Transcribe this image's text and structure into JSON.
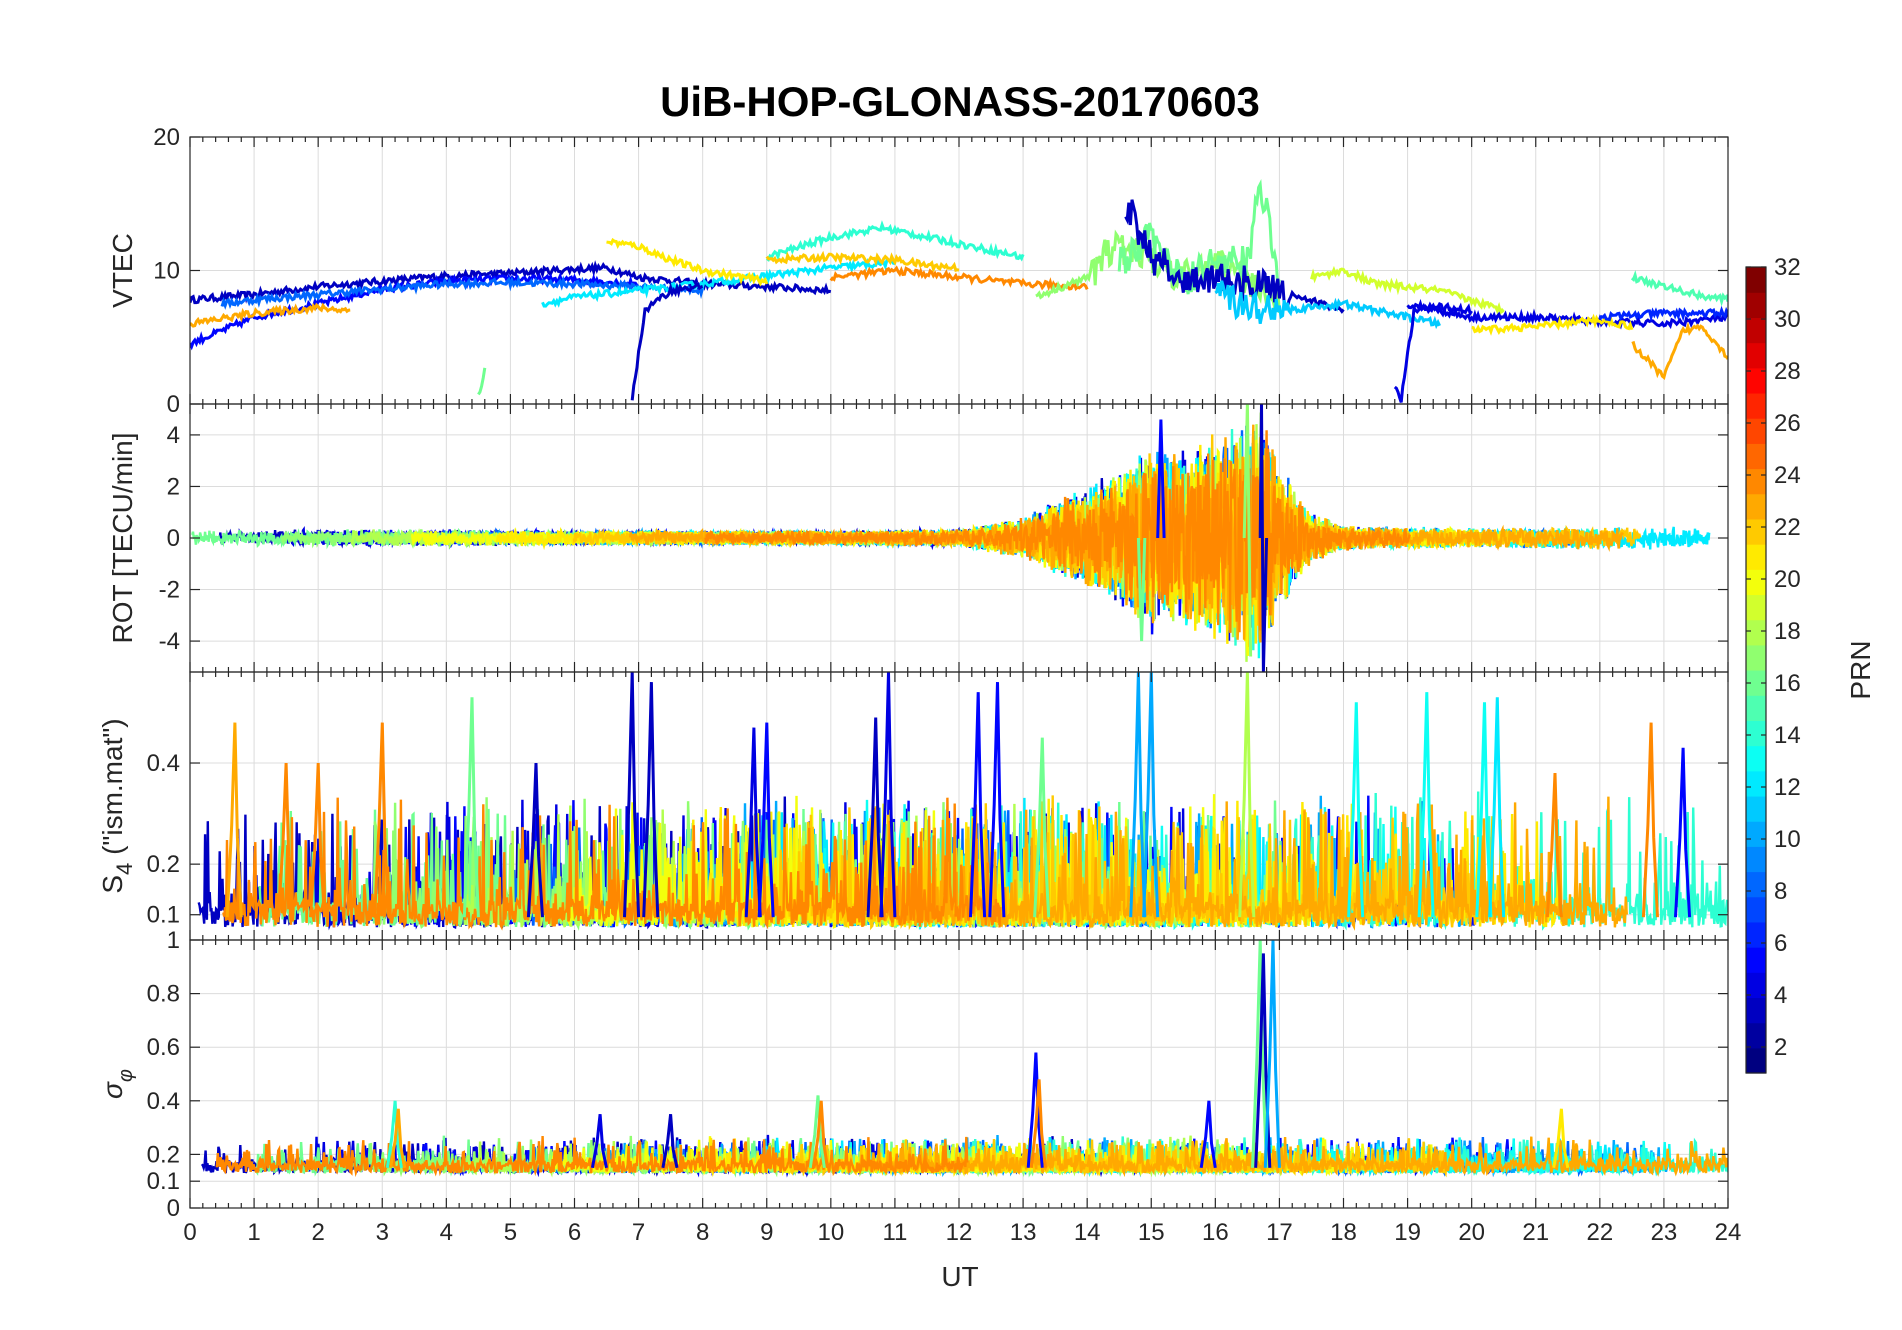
{
  "chart_data": {
    "type": "line",
    "title": "UiB-HOP-GLONASS-20170603",
    "xlabel": "UT",
    "xlim": [
      0,
      24
    ],
    "xticks": [
      "0",
      "1",
      "2",
      "3",
      "4",
      "5",
      "6",
      "7",
      "8",
      "9",
      "10",
      "11",
      "12",
      "13",
      "14",
      "15",
      "16",
      "17",
      "18",
      "19",
      "20",
      "21",
      "22",
      "23",
      "24"
    ],
    "panels": [
      {
        "id": "vtec",
        "ylabel": "VTEC",
        "ylim": [
          0,
          20
        ],
        "yticks": [
          {
            "v": 0,
            "label": "0"
          },
          {
            "v": 10,
            "label": "10"
          },
          {
            "v": 20,
            "label": "20"
          }
        ],
        "series": [
          {
            "prn": 3,
            "x": [
              0,
              1,
              2,
              3,
              4,
              5,
              6,
              6.5,
              7,
              8,
              9,
              10
            ],
            "y": [
              7.8,
              8.2,
              8.8,
              9.2,
              9.6,
              9.8,
              10.1,
              10.2,
              9.5,
              9.0,
              8.8,
              8.5
            ]
          },
          {
            "prn": 5,
            "x": [
              0,
              0.5,
              1,
              2,
              3,
              4,
              5,
              6,
              7
            ],
            "y": [
              4.5,
              5.5,
              6.5,
              7.5,
              8.6,
              9.2,
              9.4,
              9.3,
              9.0
            ]
          },
          {
            "prn": 8,
            "x": [
              0.5,
              1,
              2,
              3,
              4,
              5,
              6,
              7,
              8
            ],
            "y": [
              7.5,
              7.8,
              8.2,
              8.6,
              9.0,
              9.1,
              9.0,
              8.8,
              8.5
            ]
          },
          {
            "prn": 12,
            "x": [
              5.5,
              6,
              7,
              8,
              9,
              10,
              11
            ],
            "y": [
              7.5,
              8.0,
              8.5,
              9.0,
              9.6,
              10.2,
              10.6
            ]
          },
          {
            "prn": 14,
            "x": [
              9,
              10,
              10.8,
              11.5,
              12.5,
              13
            ],
            "y": [
              11.0,
              12.5,
              13.2,
              12.5,
              11.5,
              11.0
            ]
          },
          {
            "prn": 21,
            "x": [
              6.5,
              7,
              7.5,
              8,
              9
            ],
            "y": [
              12.2,
              11.8,
              10.8,
              10.0,
              9.2
            ]
          },
          {
            "prn": 22,
            "x": [
              9,
              10,
              11,
              11.5,
              12
            ],
            "y": [
              10.8,
              11.0,
              10.8,
              10.4,
              10.2
            ]
          },
          {
            "prn": 23,
            "x": [
              0,
              1,
              2,
              2.5
            ],
            "y": [
              6.0,
              6.8,
              7.2,
              7.0
            ]
          },
          {
            "prn": 24,
            "x": [
              10,
              11,
              12,
              13,
              14
            ],
            "y": [
              9.5,
              10.0,
              9.5,
              9.0,
              8.8
            ]
          },
          {
            "prn": 17,
            "x": [
              13.2,
              14,
              14.5,
              15,
              15.5,
              16,
              16.5,
              17
            ],
            "y": [
              8.0,
              9.5,
              12.0,
              11.0,
              9.5,
              10.5,
              9.0,
              8.0
            ]
          },
          {
            "prn": 16,
            "x": [
              14.5,
              15,
              15.5,
              16,
              16.5,
              16.7,
              17
            ],
            "y": [
              10.5,
              12.5,
              9.0,
              11.0,
              10.5,
              17.0,
              8.5
            ]
          },
          {
            "prn": 3,
            "x": [
              14.6,
              14.7,
              15,
              15.5,
              16,
              17,
              18
            ],
            "y": [
              14.2,
              14.5,
              11.0,
              9.0,
              9.5,
              8.5,
              7.0
            ]
          },
          {
            "prn": 11,
            "x": [
              16,
              17,
              18,
              19,
              19.5
            ],
            "y": [
              8.0,
              7.0,
              7.5,
              6.5,
              6.0
            ]
          },
          {
            "prn": 19,
            "x": [
              17.5,
              18,
              18.5,
              19.5,
              20.5
            ],
            "y": [
              9.5,
              10.0,
              9.0,
              8.5,
              7.0
            ]
          },
          {
            "prn": 4,
            "x": [
              19,
              20,
              21,
              22,
              23,
              24
            ],
            "y": [
              7.5,
              6.5,
              6.5,
              6.2,
              6.0,
              6.5
            ]
          },
          {
            "prn": 21,
            "x": [
              20,
              21,
              22,
              22.5
            ],
            "y": [
              5.5,
              5.8,
              6.3,
              5.8
            ]
          },
          {
            "prn": 15,
            "x": [
              22.5,
              23,
              23.5,
              24
            ],
            "y": [
              9.5,
              8.8,
              8.2,
              7.8
            ]
          },
          {
            "prn": 23,
            "x": [
              22.5,
              23,
              23.3,
              23.6,
              24
            ],
            "y": [
              4.5,
              2.0,
              5.5,
              5.8,
              3.5
            ]
          },
          {
            "prn": 6,
            "x": [
              22,
              23,
              24
            ],
            "y": [
              6.5,
              6.8,
              6.8
            ]
          },
          {
            "prn": 3,
            "x": [
              6.9,
              7.1,
              7.5,
              8
            ],
            "y": [
              0.5,
              7.0,
              8.5,
              8.8
            ]
          },
          {
            "prn": 4,
            "x": [
              18.8,
              18.9,
              19.1,
              19.5,
              20
            ],
            "y": [
              1.5,
              0.3,
              7.0,
              7.3,
              7.0
            ]
          },
          {
            "prn": 16,
            "x": [
              4.5,
              4.6
            ],
            "y": [
              0.5,
              2.5
            ]
          }
        ]
      },
      {
        "id": "rot",
        "ylabel": "ROT [TECU/min]",
        "ylim": [
          -5.2,
          5.2
        ],
        "yticks": [
          {
            "v": -4,
            "label": "-4"
          },
          {
            "v": -2,
            "label": "-2"
          },
          {
            "v": 0,
            "label": "0"
          },
          {
            "v": 2,
            "label": "2"
          },
          {
            "v": 4,
            "label": "4"
          }
        ],
        "envelope": {
          "x": [
            0,
            2,
            4,
            6,
            8,
            10,
            12,
            13,
            13.5,
            14,
            14.5,
            15,
            15.5,
            16,
            16.5,
            16.7,
            17,
            17.5,
            18,
            20,
            22,
            24
          ],
          "amp": [
            0.3,
            0.35,
            0.35,
            0.3,
            0.3,
            0.3,
            0.35,
            0.8,
            1.5,
            2.0,
            2.8,
            3.8,
            3.5,
            4.2,
            5.0,
            5.2,
            3.0,
            1.0,
            0.5,
            0.4,
            0.45,
            0.45
          ]
        },
        "series": [
          {
            "prn": 3,
            "x": [
              16.7,
              16.72,
              16.75,
              16.8
            ],
            "y": [
              0,
              5.2,
              -5.2,
              0
            ]
          },
          {
            "prn": 17,
            "x": [
              16.45,
              16.5,
              16.55
            ],
            "y": [
              0,
              5.2,
              -4.6
            ]
          },
          {
            "prn": 16,
            "x": [
              14.8,
              14.85,
              14.9
            ],
            "y": [
              0,
              -4.0,
              0
            ]
          },
          {
            "prn": 5,
            "x": [
              15.1,
              15.15,
              15.2
            ],
            "y": [
              0,
              4.6,
              0
            ]
          }
        ]
      },
      {
        "id": "s4",
        "ylabel": "S4 (\"ism.mat\")",
        "ylim": [
          0.05,
          0.58
        ],
        "yticks": [
          {
            "v": 0.1,
            "label": "0.1"
          },
          {
            "v": 0.2,
            "label": "0.2"
          },
          {
            "v": 0.4,
            "label": "0.4"
          }
        ],
        "peaks": [
          {
            "prn": 23,
            "x": 0.7,
            "y": 0.48
          },
          {
            "prn": 24,
            "x": 1.5,
            "y": 0.4
          },
          {
            "prn": 24,
            "x": 2.0,
            "y": 0.4
          },
          {
            "prn": 24,
            "x": 3.0,
            "y": 0.48
          },
          {
            "prn": 16,
            "x": 4.4,
            "y": 0.53
          },
          {
            "prn": 3,
            "x": 5.4,
            "y": 0.4
          },
          {
            "prn": 3,
            "x": 6.9,
            "y": 0.58
          },
          {
            "prn": 3,
            "x": 7.2,
            "y": 0.56
          },
          {
            "prn": 4,
            "x": 8.8,
            "y": 0.47
          },
          {
            "prn": 5,
            "x": 9.0,
            "y": 0.48
          },
          {
            "prn": 3,
            "x": 10.7,
            "y": 0.49
          },
          {
            "prn": 4,
            "x": 10.9,
            "y": 0.58
          },
          {
            "prn": 5,
            "x": 12.3,
            "y": 0.54
          },
          {
            "prn": 5,
            "x": 12.6,
            "y": 0.56
          },
          {
            "prn": 16,
            "x": 13.3,
            "y": 0.45
          },
          {
            "prn": 10,
            "x": 14.8,
            "y": 0.58
          },
          {
            "prn": 10,
            "x": 15.0,
            "y": 0.58
          },
          {
            "prn": 18,
            "x": 16.5,
            "y": 0.58
          },
          {
            "prn": 13,
            "x": 18.2,
            "y": 0.52
          },
          {
            "prn": 13,
            "x": 19.3,
            "y": 0.54
          },
          {
            "prn": 13,
            "x": 20.2,
            "y": 0.52
          },
          {
            "prn": 12,
            "x": 20.4,
            "y": 0.53
          },
          {
            "prn": 24,
            "x": 21.3,
            "y": 0.38
          },
          {
            "prn": 24,
            "x": 22.8,
            "y": 0.48
          },
          {
            "prn": 5,
            "x": 23.3,
            "y": 0.43
          }
        ]
      },
      {
        "id": "sigma",
        "ylabel": "σφ",
        "ylim": [
          0,
          1
        ],
        "yticks": [
          {
            "v": 0,
            "label": "0"
          },
          {
            "v": 0.1,
            "label": "0.1"
          },
          {
            "v": 0.2,
            "label": "0.2"
          },
          {
            "v": 0.4,
            "label": "0.4"
          },
          {
            "v": 0.6,
            "label": "0.6"
          },
          {
            "v": 0.8,
            "label": "0.8"
          },
          {
            "v": 1,
            "label": "1"
          }
        ],
        "peaks": [
          {
            "prn": 14,
            "x": 3.2,
            "y": 0.4
          },
          {
            "prn": 23,
            "x": 3.25,
            "y": 0.37
          },
          {
            "prn": 4,
            "x": 6.4,
            "y": 0.35
          },
          {
            "prn": 3,
            "x": 7.5,
            "y": 0.35
          },
          {
            "prn": 16,
            "x": 9.8,
            "y": 0.42
          },
          {
            "prn": 24,
            "x": 9.85,
            "y": 0.4
          },
          {
            "prn": 5,
            "x": 13.2,
            "y": 0.58
          },
          {
            "prn": 24,
            "x": 13.25,
            "y": 0.48
          },
          {
            "prn": 16,
            "x": 16.7,
            "y": 1.0
          },
          {
            "prn": 3,
            "x": 16.75,
            "y": 0.95
          },
          {
            "prn": 10,
            "x": 16.9,
            "y": 1.0
          },
          {
            "prn": 5,
            "x": 15.9,
            "y": 0.4
          },
          {
            "prn": 21,
            "x": 21.4,
            "y": 0.37
          }
        ]
      }
    ],
    "colorbar": {
      "label": "PRN",
      "range": [
        1,
        32
      ],
      "ticks": [
        "2",
        "4",
        "6",
        "8",
        "10",
        "12",
        "14",
        "16",
        "18",
        "20",
        "22",
        "24",
        "26",
        "28",
        "30",
        "32"
      ],
      "colormap": "jet"
    }
  }
}
